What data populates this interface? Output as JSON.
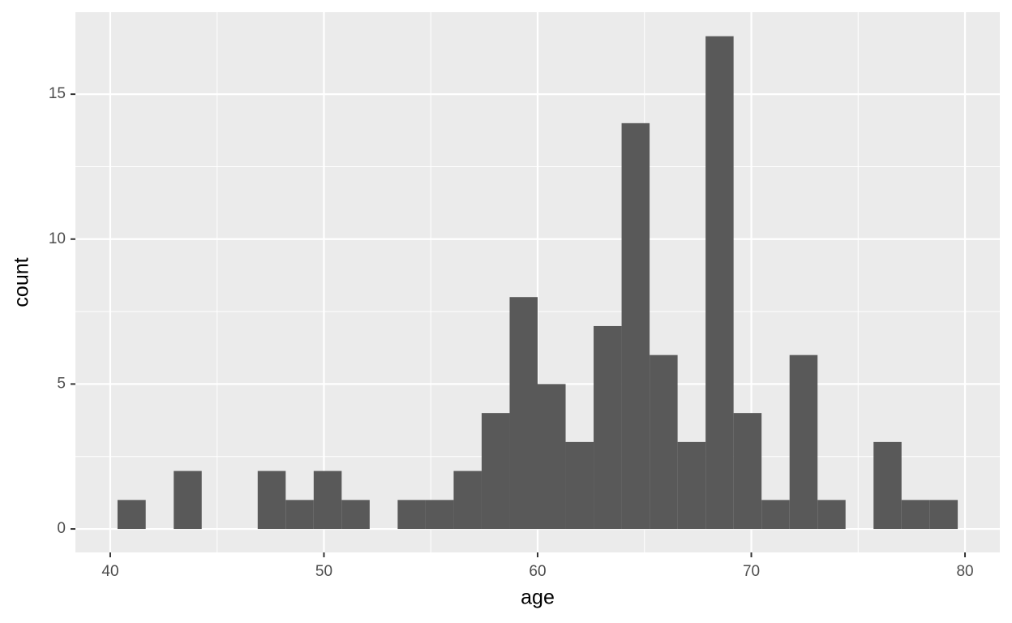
{
  "chart_data": {
    "type": "histogram",
    "x_label": "age",
    "y_label": "count",
    "bins": [
      40.34,
      41.66,
      42.97,
      44.28,
      45.59,
      46.9,
      48.21,
      49.52,
      50.83,
      52.14,
      53.45,
      54.76,
      56.07,
      57.38,
      58.69,
      60.0,
      61.31,
      62.62,
      63.93,
      65.24,
      66.55,
      67.86,
      69.17,
      70.48,
      71.79,
      73.1,
      74.41,
      75.72,
      77.03,
      78.34,
      79.66
    ],
    "counts": [
      1,
      0,
      2,
      0,
      0,
      2,
      1,
      2,
      1,
      0,
      1,
      1,
      2,
      4,
      8,
      5,
      3,
      7,
      14,
      6,
      3,
      17,
      4,
      1,
      6,
      1,
      0,
      3,
      1,
      1
    ],
    "color": "#595959",
    "xlim": [
      38.37,
      81.63
    ],
    "xticks": [
      40,
      50,
      60,
      70,
      80
    ],
    "ylim": [
      -0.81,
      17.83
    ],
    "yticks": [
      0,
      5,
      10,
      15
    ],
    "grid": true
  }
}
